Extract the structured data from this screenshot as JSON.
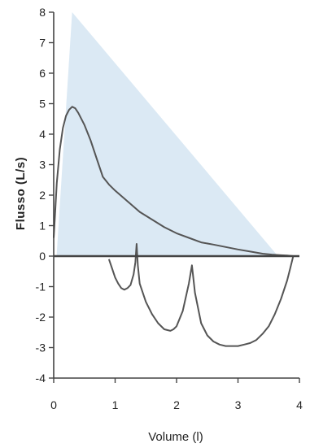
{
  "chart_data": {
    "type": "line",
    "xlabel": "Volume (l)",
    "ylabel": "Flusso (L/s)",
    "xlim": [
      0,
      4
    ],
    "ylim": [
      -4,
      8
    ],
    "x_ticks": [
      "0",
      "1",
      "2",
      "3",
      "4"
    ],
    "y_ticks": [
      "-4",
      "-3",
      "-2",
      "-1",
      "0",
      "1",
      "2",
      "3",
      "4",
      "5",
      "6",
      "7",
      "8"
    ],
    "grid": false,
    "colors": {
      "curve": "#555555",
      "predicted_area": "#dbe9f4",
      "axis": "#444444"
    },
    "predicted_area": [
      [
        0.05,
        0.1
      ],
      [
        0.3,
        8.0
      ],
      [
        3.65,
        0.0
      ],
      [
        0.05,
        0.0
      ]
    ],
    "series": [
      {
        "role": "expiratory",
        "x": [
          0.0,
          0.02,
          0.05,
          0.1,
          0.15,
          0.2,
          0.25,
          0.3,
          0.35,
          0.4,
          0.5,
          0.6,
          0.7,
          0.8,
          0.9,
          1.0,
          1.2,
          1.4,
          1.6,
          1.8,
          2.0,
          2.2,
          2.4,
          2.6,
          2.8,
          3.0,
          3.2,
          3.4,
          3.55,
          3.7,
          3.8,
          3.9
        ],
        "y": [
          0.6,
          1.3,
          2.4,
          3.5,
          4.2,
          4.6,
          4.8,
          4.9,
          4.85,
          4.7,
          4.3,
          3.8,
          3.2,
          2.6,
          2.35,
          2.15,
          1.8,
          1.45,
          1.2,
          0.95,
          0.75,
          0.6,
          0.45,
          0.38,
          0.3,
          0.22,
          0.15,
          0.08,
          0.05,
          0.03,
          0.02,
          0.0
        ]
      },
      {
        "role": "inspiratory",
        "x": [
          0.9,
          0.95,
          1.0,
          1.05,
          1.1,
          1.15,
          1.2,
          1.25,
          1.3,
          1.33,
          1.35,
          1.37,
          1.4,
          1.5,
          1.6,
          1.7,
          1.8,
          1.9,
          1.95,
          2.0,
          2.1,
          2.2,
          2.25,
          2.3,
          2.4,
          2.5,
          2.6,
          2.7,
          2.8,
          2.9,
          3.0,
          3.1,
          3.2,
          3.3,
          3.4,
          3.5,
          3.6,
          3.7,
          3.8,
          3.85,
          3.9
        ],
        "y": [
          -0.1,
          -0.4,
          -0.7,
          -0.9,
          -1.05,
          -1.1,
          -1.05,
          -0.95,
          -0.6,
          -0.2,
          0.4,
          -0.3,
          -0.9,
          -1.5,
          -1.9,
          -2.2,
          -2.4,
          -2.45,
          -2.4,
          -2.3,
          -1.8,
          -0.9,
          -0.3,
          -1.2,
          -2.2,
          -2.6,
          -2.8,
          -2.9,
          -2.95,
          -2.95,
          -2.95,
          -2.9,
          -2.85,
          -2.75,
          -2.55,
          -2.3,
          -1.9,
          -1.4,
          -0.8,
          -0.4,
          0.0
        ]
      }
    ]
  }
}
